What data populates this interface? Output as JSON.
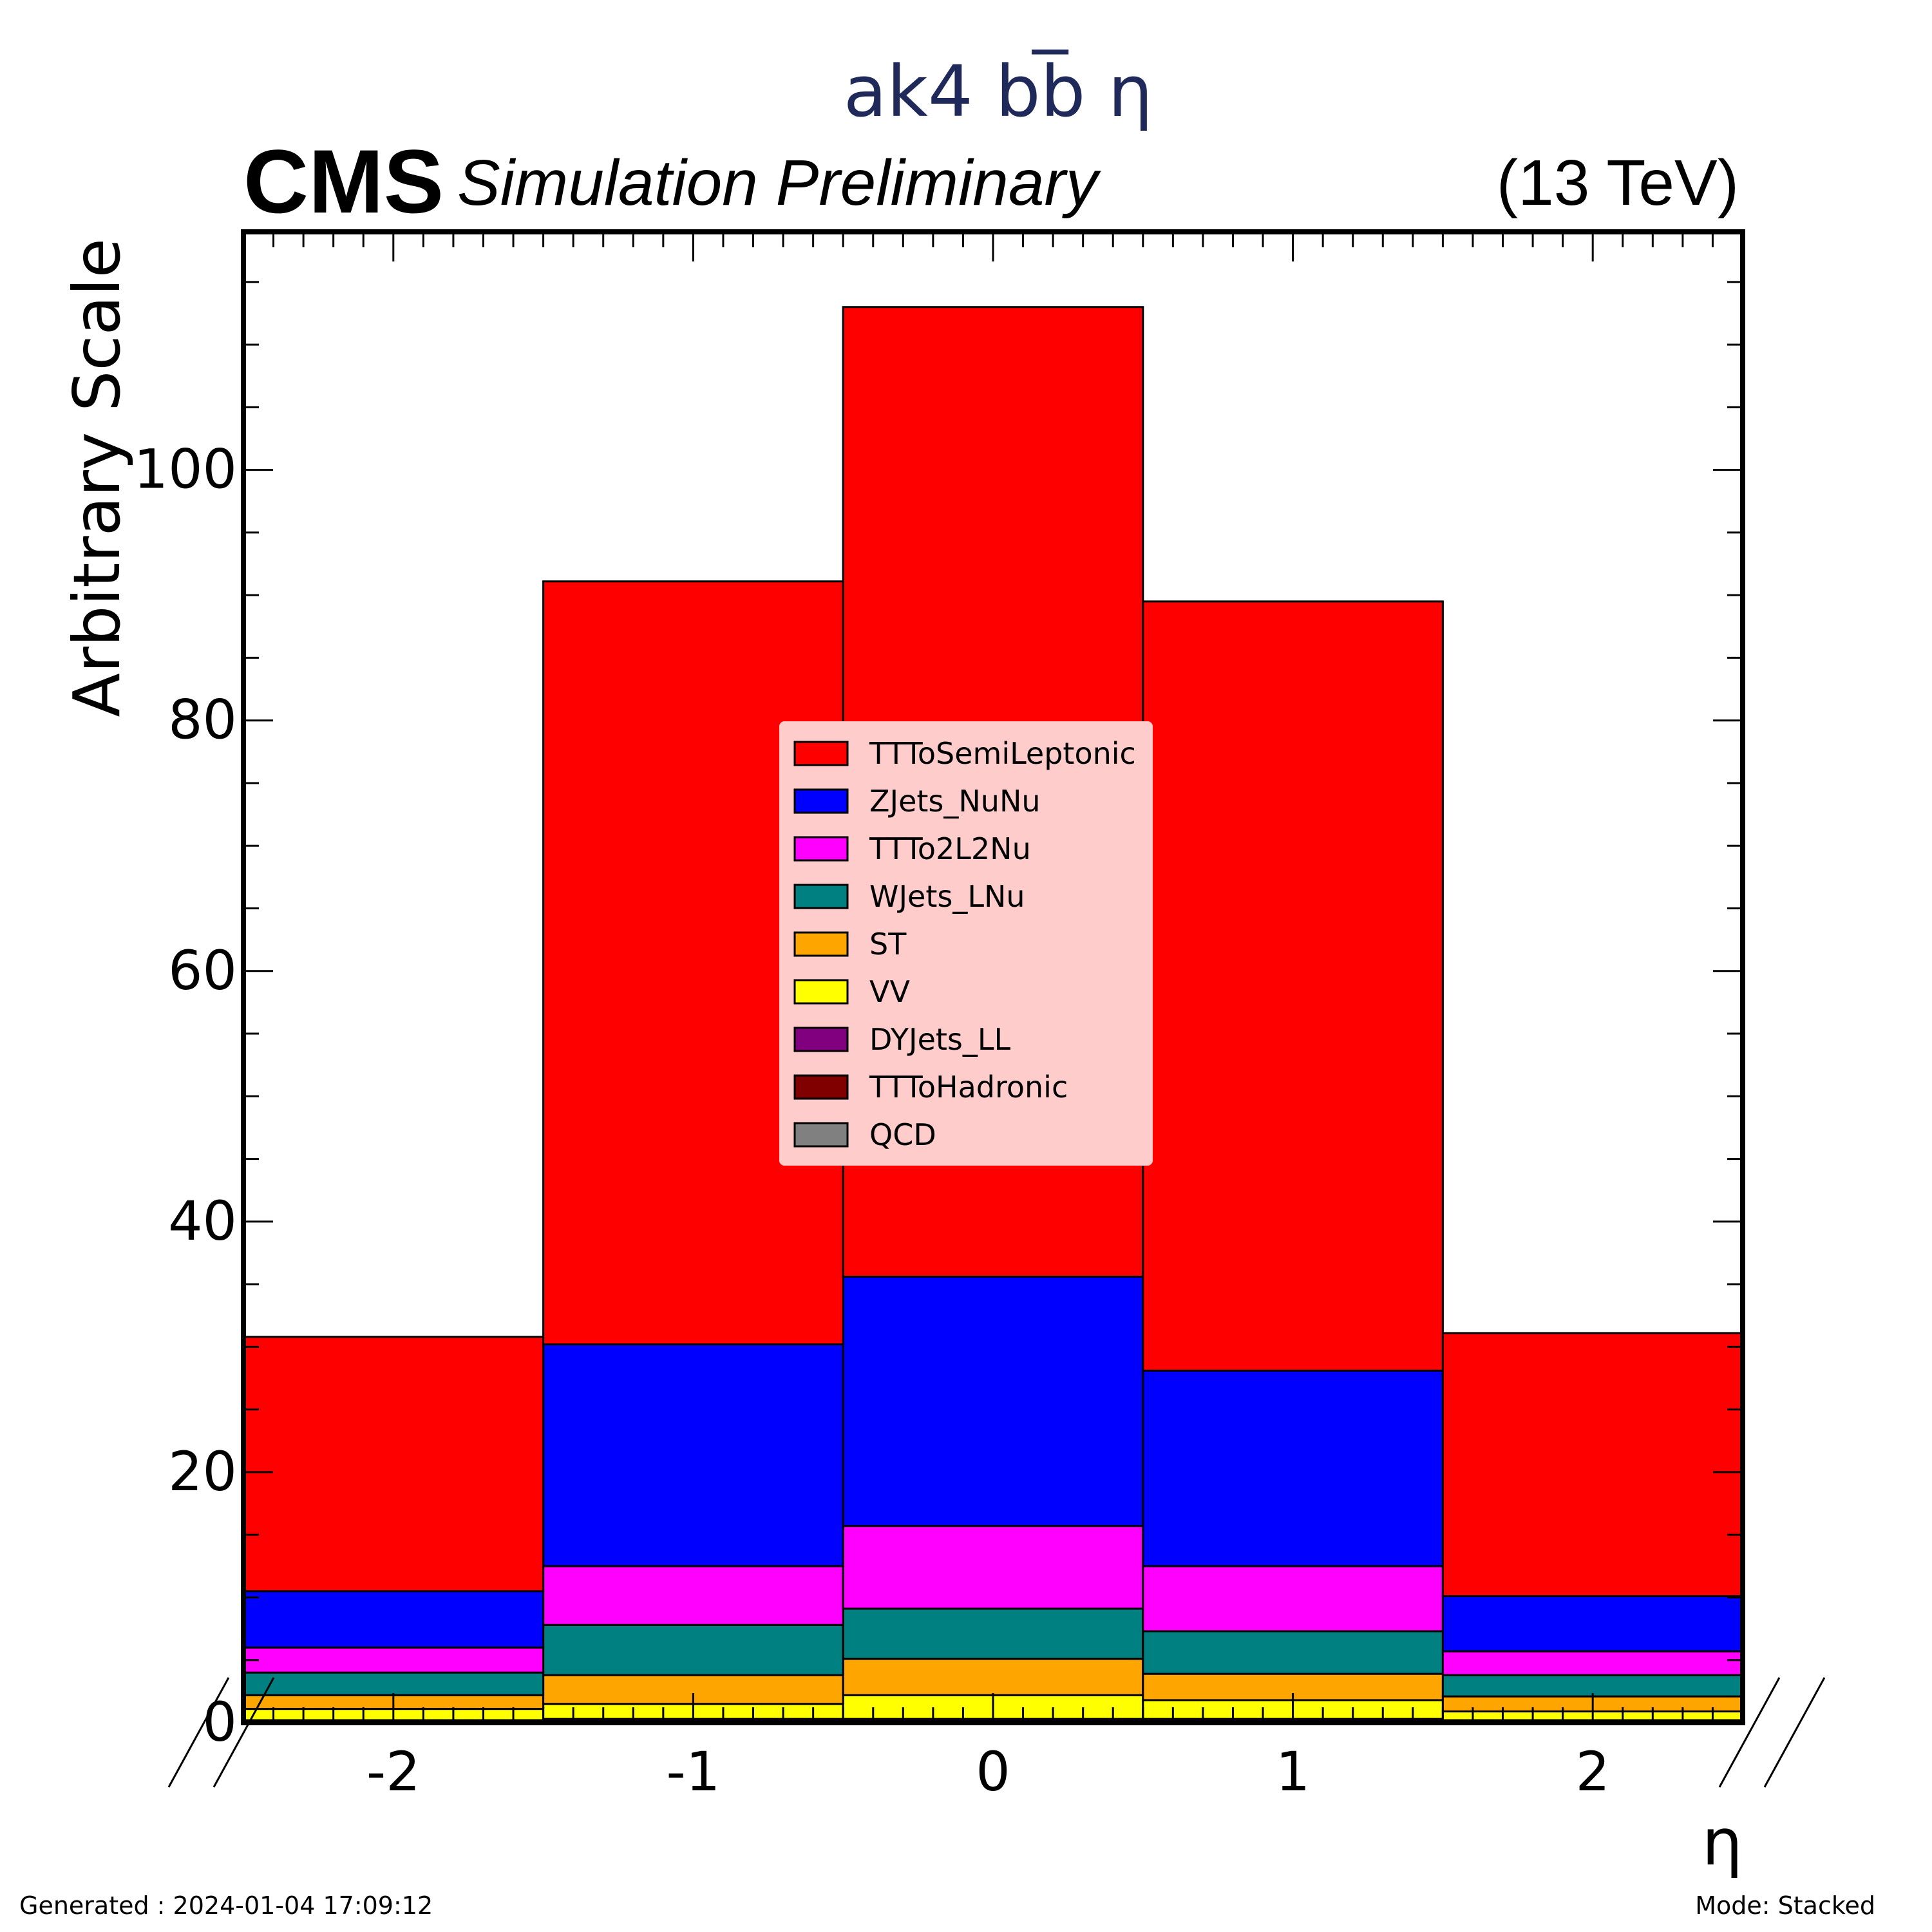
{
  "header": {
    "title": "ak4 bb̅ η",
    "cms": "CMS",
    "sim_label": "Simulation Preliminary",
    "energy": "(13 TeV)"
  },
  "footer": {
    "generated": "Generated : 2024-01-04 17:09:12",
    "mode": "Mode: Stacked"
  },
  "colors": {
    "title": "#1f2a5a",
    "frame": "#000000",
    "legend_bg": "#ffcccc"
  },
  "chart_data": {
    "type": "bar",
    "stacked": true,
    "xlabel": "η",
    "ylabel": "Arbitrary Scale",
    "xlim": [
      -2.5,
      2.5
    ],
    "ylim": [
      0,
      119
    ],
    "bin_edges": [
      -2.5,
      -1.5,
      -0.5,
      0.5,
      1.5,
      2.5
    ],
    "x_ticks": [
      {
        "value": -2,
        "label": "-2"
      },
      {
        "value": -1,
        "label": "-1"
      },
      {
        "value": 0,
        "label": "0"
      },
      {
        "value": 1,
        "label": "1"
      },
      {
        "value": 2,
        "label": "2"
      }
    ],
    "y_ticks": [
      {
        "value": 0,
        "label": "0"
      },
      {
        "value": 20,
        "label": "20"
      },
      {
        "value": 40,
        "label": "40"
      },
      {
        "value": 60,
        "label": "60"
      },
      {
        "value": 80,
        "label": "80"
      },
      {
        "value": 100,
        "label": "100"
      }
    ],
    "legend_position": "center",
    "grid": false,
    "series": [
      {
        "name": "QCD",
        "color": "#808080",
        "values": [
          0.0,
          0.0,
          0.0,
          0.0,
          0.0
        ]
      },
      {
        "name": "TTToHadronic",
        "color": "#800000",
        "values": [
          0.1,
          0.1,
          0.1,
          0.1,
          0.1
        ]
      },
      {
        "name": "DYJets_LL",
        "color": "#800080",
        "values": [
          0.1,
          0.2,
          0.2,
          0.2,
          0.1
        ]
      },
      {
        "name": "VV",
        "color": "#ffff00",
        "values": [
          0.9,
          1.2,
          1.9,
          1.5,
          0.7
        ]
      },
      {
        "name": "ST",
        "color": "#ffa500",
        "values": [
          1.1,
          2.3,
          2.9,
          2.1,
          1.2
        ]
      },
      {
        "name": "WJets_LNu",
        "color": "#008080",
        "values": [
          1.8,
          4.0,
          4.0,
          3.4,
          1.7
        ]
      },
      {
        "name": "TTTo2L2Nu",
        "color": "#ff00ff",
        "values": [
          2.0,
          4.7,
          6.6,
          5.2,
          1.9
        ]
      },
      {
        "name": "ZJets_NuNu",
        "color": "#0000ff",
        "values": [
          4.5,
          17.7,
          19.9,
          15.6,
          4.4
        ]
      },
      {
        "name": "TTToSemiLeptonic",
        "color": "#ff0000",
        "values": [
          20.3,
          60.9,
          77.4,
          61.4,
          21.0
        ]
      }
    ],
    "legend_order": [
      "TTToSemiLeptonic",
      "ZJets_NuNu",
      "TTTo2L2Nu",
      "WJets_LNu",
      "ST",
      "VV",
      "DYJets_LL",
      "TTToHadronic",
      "QCD"
    ]
  }
}
